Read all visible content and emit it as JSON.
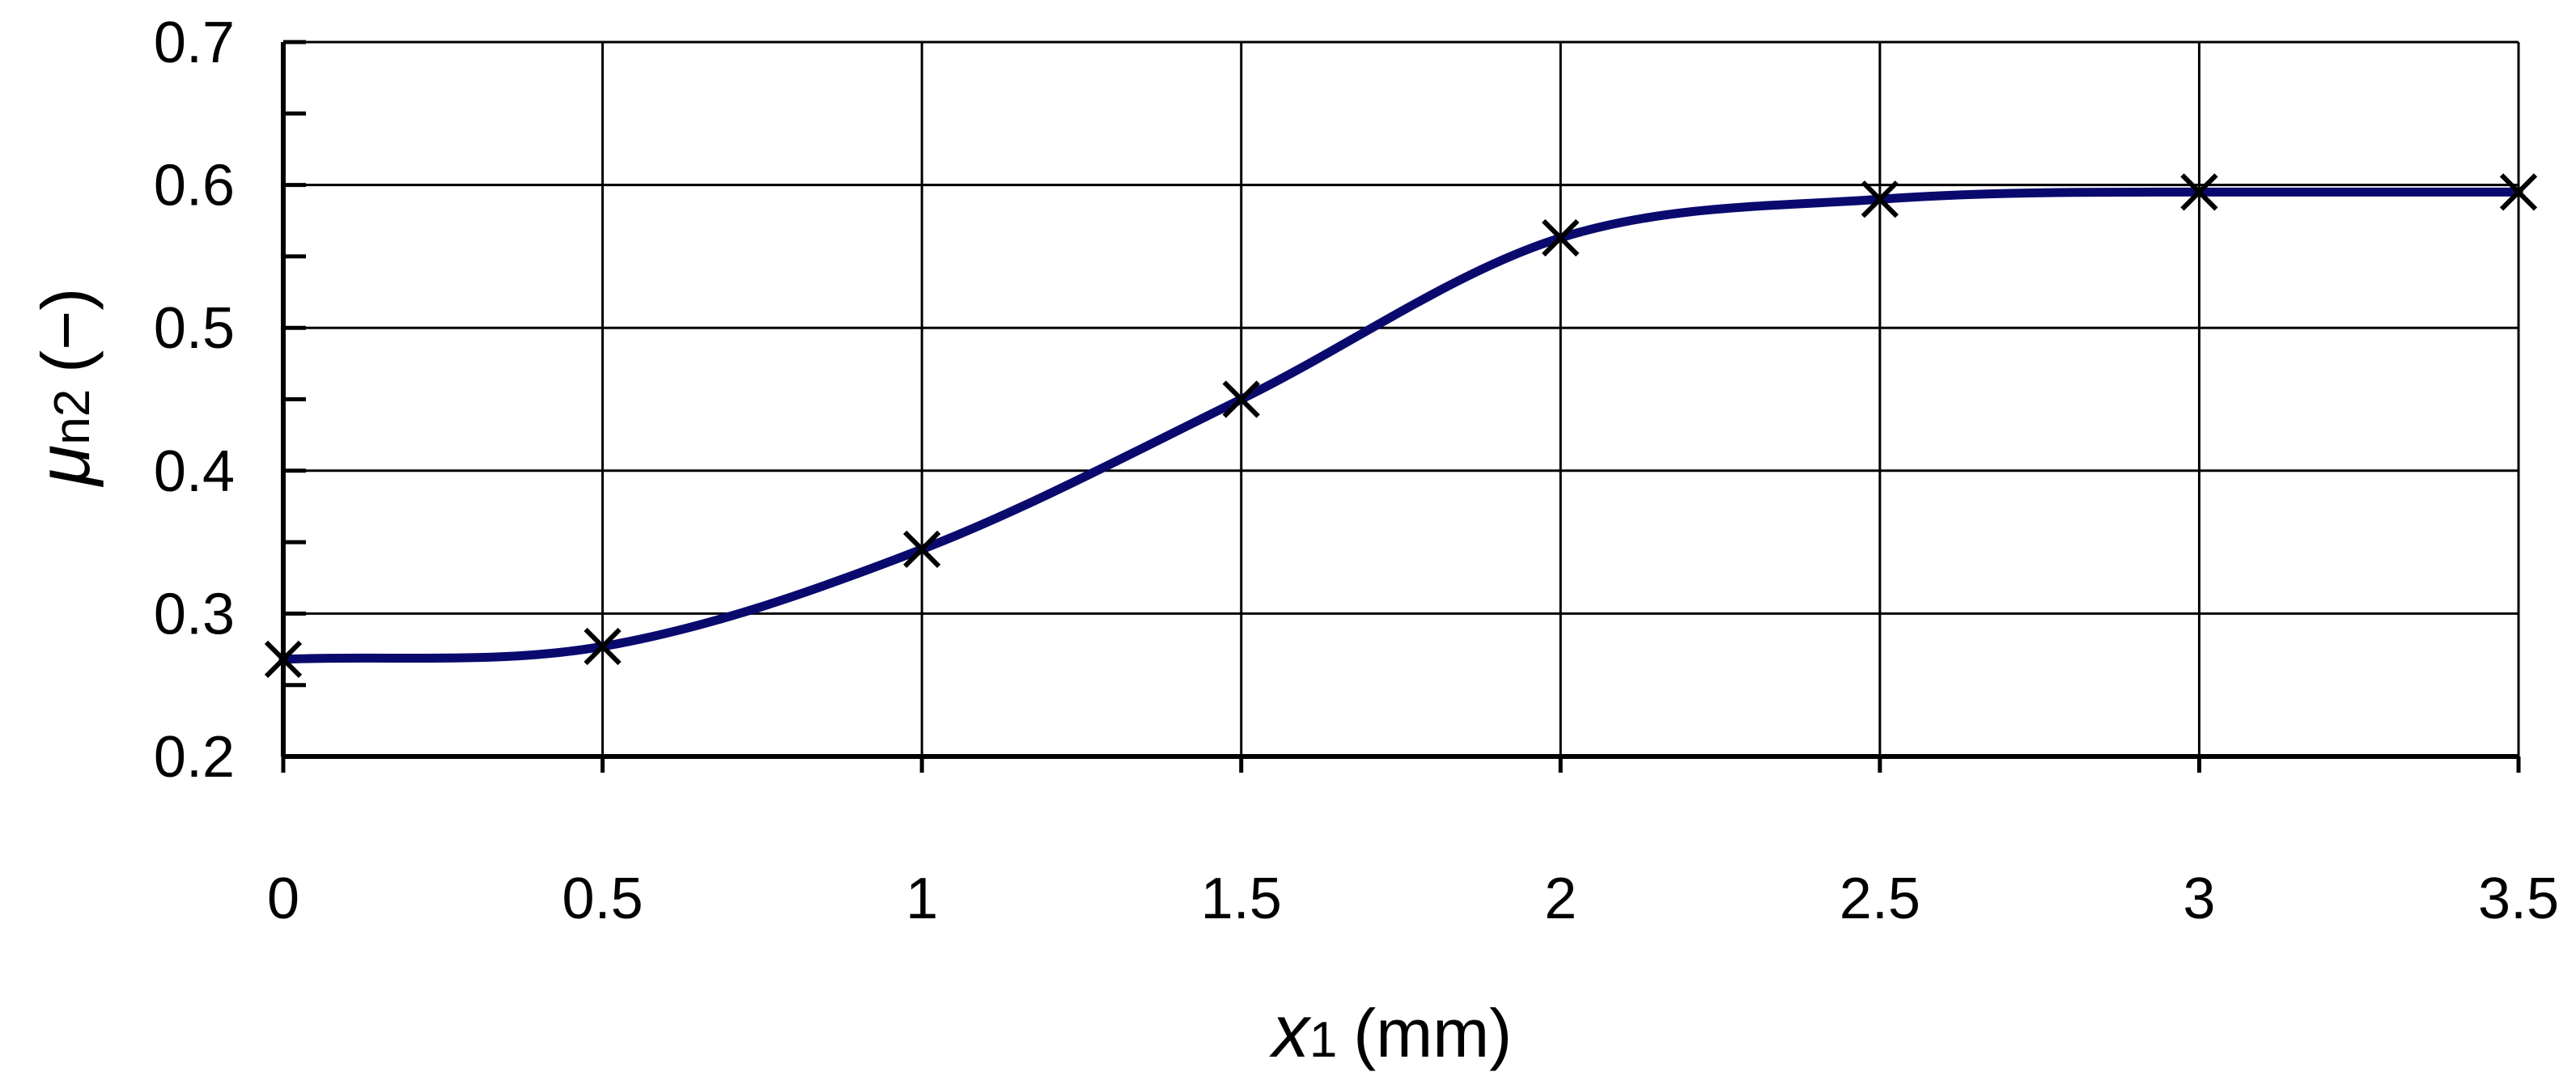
{
  "chart_data": {
    "type": "line",
    "xlabel": {
      "symbol": "x",
      "subscript": "1",
      "unit": "(mm)"
    },
    "ylabel": {
      "symbol": "μ",
      "subscript": "n2",
      "unit": "(−)"
    },
    "xlim": [
      0,
      3.5
    ],
    "ylim": [
      0.2,
      0.7
    ],
    "x_ticks": [
      "0",
      "0.5",
      "1",
      "1.5",
      "2",
      "2.5",
      "3",
      "3.5"
    ],
    "y_ticks": [
      "0.2",
      "0.3",
      "0.4",
      "0.5",
      "0.6",
      "0.7"
    ],
    "y_minor_step": 0.05,
    "grid": true,
    "legend": "none",
    "series": [
      {
        "marker": "x",
        "line": "smooth",
        "x": [
          0,
          0.5,
          1,
          1.5,
          2,
          2.5,
          3,
          3.5
        ],
        "values": [
          0.268,
          0.277,
          0.345,
          0.45,
          0.563,
          0.59,
          0.595,
          0.595
        ]
      }
    ],
    "colors": {
      "line": "#0a0a6e",
      "marker": "#000000",
      "grid": "#000000",
      "axis": "#000000"
    }
  }
}
